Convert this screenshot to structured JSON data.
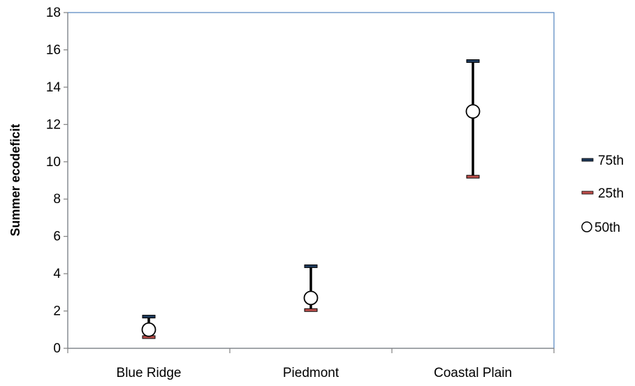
{
  "chart_data": {
    "type": "range",
    "title": "",
    "xlabel": "",
    "ylabel": "Summer ecodeficit",
    "ylim": [
      0,
      18
    ],
    "yticks": [
      0,
      2,
      4,
      6,
      8,
      10,
      12,
      14,
      16,
      18
    ],
    "grid": false,
    "legend_position": "right",
    "categories": [
      "Blue Ridge",
      "Piedmont",
      "Coastal Plain"
    ],
    "series": [
      {
        "name": "75th",
        "values": [
          1.7,
          4.4,
          15.4
        ],
        "color": "#1f3a5a",
        "marker": "dash"
      },
      {
        "name": "25th",
        "values": [
          0.6,
          2.05,
          9.2
        ],
        "color": "#c0504d",
        "marker": "dash"
      },
      {
        "name": "50th",
        "values": [
          1.0,
          2.7,
          12.7
        ],
        "color": "#ffffff",
        "marker": "circle"
      }
    ],
    "colors": {
      "plot_border": "#4f81bd",
      "axis": "#808080",
      "range_line": "#000000"
    }
  }
}
